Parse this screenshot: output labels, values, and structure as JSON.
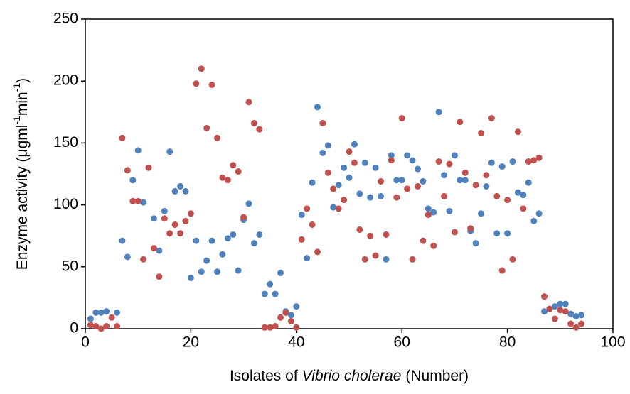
{
  "chart_data": {
    "type": "scatter",
    "xlabel": [
      "Isolates of",
      "Vibrio cholerae",
      "(Number)"
    ],
    "ylabel": [
      {
        "text": "Enzyme activity  (μgml"
      },
      {
        "text": "-1",
        "sup": true
      },
      {
        "text": "min"
      },
      {
        "text": "-1",
        "sup": true
      },
      {
        "text": ")"
      }
    ],
    "x": [
      1,
      2,
      3,
      4,
      5,
      6,
      7,
      8,
      9,
      10,
      11,
      12,
      13,
      14,
      15,
      16,
      17,
      18,
      19,
      20,
      21,
      22,
      23,
      24,
      25,
      26,
      27,
      28,
      29,
      30,
      31,
      32,
      33,
      34,
      35,
      36,
      37,
      38,
      39,
      40,
      41,
      42,
      43,
      44,
      45,
      46,
      47,
      48,
      49,
      50,
      51,
      52,
      53,
      54,
      55,
      56,
      57,
      58,
      59,
      60,
      61,
      62,
      63,
      64,
      65,
      66,
      67,
      68,
      69,
      70,
      71,
      72,
      73,
      74,
      75,
      76,
      77,
      78,
      79,
      80,
      81,
      82,
      83,
      84,
      85,
      86,
      87,
      88,
      89,
      90,
      91,
      92,
      93,
      94
    ],
    "series": [
      {
        "color": "#4f81bd",
        "values": [
          8,
          13,
          13,
          14,
          null,
          13,
          71,
          58,
          120,
          144,
          102,
          null,
          89,
          63,
          95,
          143,
          111,
          115,
          111,
          41,
          71,
          46,
          55,
          71,
          46,
          60,
          73,
          76,
          47,
          88,
          101,
          69,
          76,
          28,
          36,
          28,
          45,
          14,
          11,
          18,
          92,
          57,
          118,
          179,
          142,
          148,
          98,
          116,
          130,
          122,
          149,
          109,
          134,
          106,
          130,
          107,
          56,
          140,
          120,
          120,
          140,
          136,
          129,
          119,
          97,
          94,
          175,
          124,
          95,
          140,
          120,
          120,
          79,
          69,
          93,
          115,
          134,
          77,
          131,
          77,
          135,
          110,
          108,
          118,
          87,
          93,
          14,
          16,
          18,
          20,
          20,
          12,
          10,
          11
        ]
      },
      {
        "color": "#c0504d",
        "values": [
          3,
          2,
          0,
          2,
          9,
          2,
          154,
          128,
          103,
          103,
          56,
          130,
          65,
          42,
          89,
          77,
          84,
          77,
          87,
          93,
          198,
          210,
          162,
          197,
          154,
          122,
          120,
          132,
          127,
          90,
          183,
          166,
          161,
          1,
          1,
          2,
          9,
          13,
          6,
          1,
          72,
          97,
          84,
          62,
          166,
          126,
          113,
          97,
          104,
          143,
          134,
          80,
          56,
          75,
          59,
          119,
          76,
          136,
          106,
          170,
          113,
          56,
          115,
          71,
          92,
          67,
          135,
          107,
          133,
          78,
          167,
          126,
          81,
          116,
          158,
          124,
          170,
          107,
          47,
          104,
          56,
          159,
          97,
          135,
          136,
          138,
          26,
          16,
          8,
          15,
          14,
          4,
          1,
          4
        ]
      }
    ],
    "xlim": [
      0,
      100
    ],
    "xticks": [
      0,
      20,
      40,
      60,
      80,
      100
    ],
    "ylim": [
      0,
      250
    ],
    "yticks": [
      0,
      50,
      100,
      150,
      200,
      250
    ],
    "grid": false
  }
}
